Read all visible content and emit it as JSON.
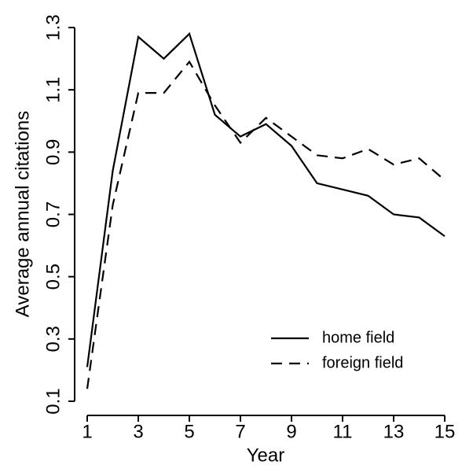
{
  "chart_data": {
    "type": "line",
    "x_label": "Year",
    "y_label": "Average annual citations",
    "x": [
      1,
      2,
      3,
      4,
      5,
      6,
      7,
      8,
      9,
      10,
      11,
      12,
      13,
      14,
      15
    ],
    "series": [
      {
        "name": "home field",
        "color": "#000000",
        "dash": "solid",
        "values": [
          0.21,
          0.84,
          1.27,
          1.2,
          1.28,
          1.02,
          0.95,
          0.99,
          0.92,
          0.8,
          0.78,
          0.76,
          0.7,
          0.69,
          0.63
        ]
      },
      {
        "name": "foreign field",
        "color": "#000000",
        "dash": "dashed",
        "values": [
          0.14,
          0.73,
          1.09,
          1.09,
          1.19,
          1.05,
          0.93,
          1.01,
          0.95,
          0.89,
          0.88,
          0.91,
          0.86,
          0.88,
          0.81
        ]
      }
    ],
    "xlim": [
      1,
      15
    ],
    "xticks": [
      1,
      3,
      5,
      7,
      9,
      11,
      13,
      15
    ],
    "ylim": [
      0.1,
      1.3
    ],
    "yticks": [
      0.1,
      0.3,
      0.5,
      0.7,
      0.9,
      1.1,
      1.3
    ],
    "grid": false,
    "legend": "bottom-right"
  }
}
